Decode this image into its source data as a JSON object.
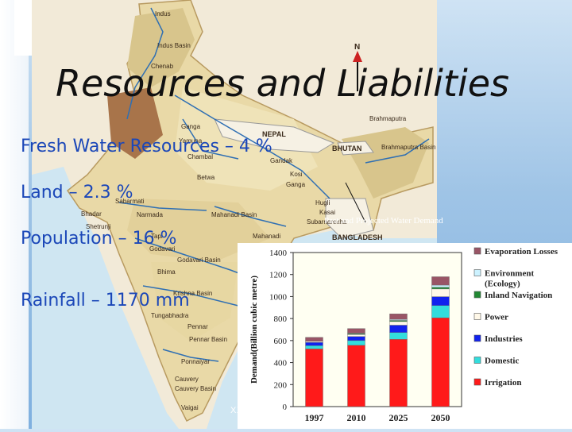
{
  "slide": {
    "title": "Resources and Liabilities",
    "bullets": [
      "Fresh Water Resources – 4 %",
      "Land – 2.3 %",
      "Population – 16 %",
      "Rainfall – 1170 mm"
    ],
    "chart_caption": "Past and Projected Water Demand",
    "placeholder_text": "XXXXXXXXXXXX"
  },
  "map": {
    "north_label": "N",
    "labels": {
      "indus": "Indus",
      "indus_basin": "Indus Basin",
      "chenab": "Chenab",
      "ganga": "Ganga",
      "yamuna": "Yamuna",
      "chambal": "Chambal",
      "gandak": "Gandak",
      "kosi": "Kosi",
      "ganga_lower": "Ganga",
      "betwa": "Betwa",
      "hugli": "Hugli",
      "kasai": "Kasai",
      "subarnarekha": "Subarnarekha",
      "brahmaputra": "Brahmaputra",
      "brahmaputra_basin": "Brahmaputra Basin",
      "sabarmati": "Sabarmati",
      "narmada": "Narmada",
      "mahanadi_basin": "Mahanadi Basin",
      "mahanadi": "Mahanadi",
      "bhadar": "Bhadar",
      "shetrunji": "Shetrunji",
      "tapi": "Tapi",
      "godavari": "Godavari",
      "godavari_basin": "Godavari Basin",
      "bhima": "Bhima",
      "krishna_basin": "Krishna Basin",
      "tungabhadra": "Tungabhadra",
      "pennar": "Pennar",
      "pennar_basin": "Pennar Basin",
      "ponnaiyar": "Ponnaiyar",
      "cauvery": "Cauvery",
      "cauvery_basin": "Cauvery Basin",
      "vaigai": "Vaigai"
    },
    "countries": {
      "nepal": "NEPAL",
      "bhutan": "BHUTAN",
      "bangladesh": "BANGLADESH"
    }
  },
  "chart_data": {
    "type": "bar",
    "stacked": true,
    "title": "",
    "xlabel": "",
    "ylabel": "Demand(Billion cubic metre)",
    "ylim": [
      0,
      1400
    ],
    "yticks": [
      0,
      200,
      400,
      600,
      800,
      1000,
      1200,
      1400
    ],
    "categories": [
      "1997",
      "2010",
      "2025",
      "2050"
    ],
    "series": [
      {
        "name": "Irrigation",
        "color": "#ff1a1a",
        "values": [
          524,
          557,
          611,
          807
        ]
      },
      {
        "name": "Domestic",
        "color": "#33dddd",
        "values": [
          30,
          43,
          62,
          111
        ]
      },
      {
        "name": "Industries",
        "color": "#1122ee",
        "values": [
          30,
          37,
          67,
          81
        ]
      },
      {
        "name": "Power",
        "color": "#fff8e8",
        "values": [
          9,
          18,
          33,
          70
        ]
      },
      {
        "name": "Inland Navigation",
        "color": "#228833",
        "values": [
          0,
          7,
          10,
          15
        ]
      },
      {
        "name": "Environment (Ecology)",
        "color": "#ccf2ff",
        "values": [
          0,
          5,
          10,
          20
        ]
      },
      {
        "name": "Evaporation Losses",
        "color": "#995566",
        "values": [
          36,
          42,
          50,
          76
        ]
      }
    ],
    "legend_position": "right",
    "grid": false
  }
}
